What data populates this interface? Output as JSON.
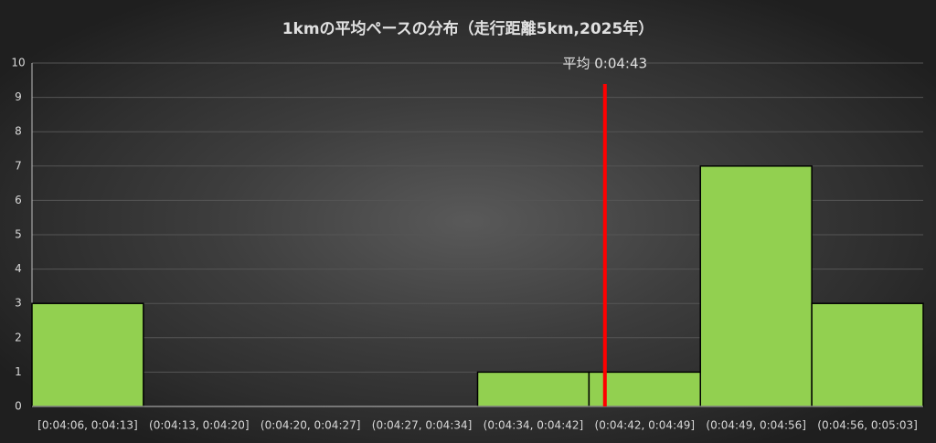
{
  "chart_data": {
    "type": "bar",
    "title": "1kmの平均ペースの分布（走行距離5km,2025年）",
    "categories": [
      "[0:04:06, 0:04:13]",
      "(0:04:13, 0:04:20]",
      "(0:04:20, 0:04:27]",
      "(0:04:27, 0:04:34]",
      "(0:04:34, 0:04:42]",
      "(0:04:42, 0:04:49]",
      "(0:04:49, 0:04:56]",
      "(0:04:56, 0:05:03]"
    ],
    "bins": [
      246,
      253,
      260,
      267,
      274,
      282,
      289,
      296,
      303
    ],
    "values": [
      3,
      0,
      0,
      0,
      1,
      1,
      7,
      3
    ],
    "color": "#92d050",
    "ylim": [
      0,
      10
    ],
    "yticks": [
      0,
      1,
      2,
      3,
      4,
      5,
      6,
      7,
      8,
      9,
      10
    ],
    "grid": true,
    "mean": {
      "label": "平均 0:04:43",
      "value": 283,
      "color": "#ff0000"
    }
  }
}
